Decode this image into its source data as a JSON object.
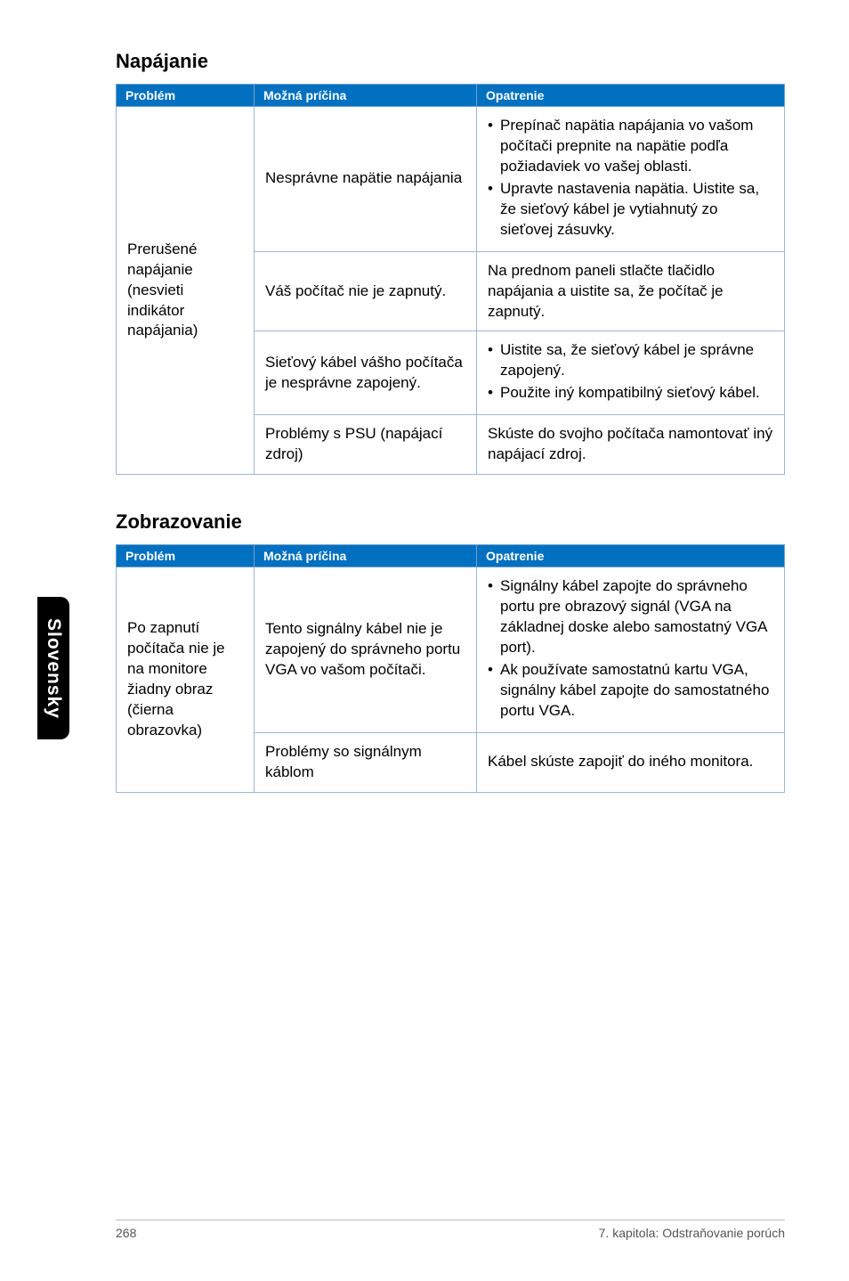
{
  "sidebar": {
    "label": "Slovensky"
  },
  "sections": {
    "power": {
      "title": "Napájanie",
      "headers": {
        "c1": "Problém",
        "c2": "Možná príčina",
        "c3": "Opatrenie"
      },
      "problem": "Prerušené napájanie (nesvieti indikátor napájania)",
      "rows": {
        "r1": {
          "cause": "Nesprávne napätie napájania",
          "fix": {
            "b1": "Prepínač napätia napájania vo vašom počítači prepnite na napätie podľa požiadaviek vo vašej oblasti.",
            "b2": "Upravte nastavenia napätia. Uistite sa, že sieťový kábel je vytiahnutý zo sieťovej zásuvky."
          }
        },
        "r2": {
          "cause": "Váš počítač nie je zapnutý.",
          "fix": "Na prednom paneli stlačte tlačidlo napájania a uistite sa, že počítač je zapnutý."
        },
        "r3": {
          "cause": "Sieťový kábel vášho počítača je nesprávne zapojený.",
          "fix": {
            "b1": "Uistite sa, že sieťový kábel je správne zapojený.",
            "b2": "Použite iný kompatibilný sieťový kábel."
          }
        },
        "r4": {
          "cause": "Problémy s PSU (napájací zdroj)",
          "fix": "Skúste do svojho počítača namontovať iný napájací zdroj."
        }
      }
    },
    "display": {
      "title": "Zobrazovanie",
      "headers": {
        "c1": "Problém",
        "c2": "Možná príčina",
        "c3": "Opatrenie"
      },
      "problem": "Po zapnutí počítača nie je na monitore žiadny obraz (čierna obrazovka)",
      "rows": {
        "r1": {
          "cause": "Tento signálny kábel nie je zapojený do správneho portu VGA vo vašom počítači.",
          "fix": {
            "b1": "Signálny kábel zapojte do správneho portu pre obrazový signál (VGA na základnej doske alebo samostatný VGA port).",
            "b2": "Ak používate samostatnú kartu VGA, signálny kábel zapojte do samostatného portu VGA."
          }
        },
        "r2": {
          "cause": "Problémy so signálnym káblom",
          "fix": "Kábel skúste zapojiť do iného monitora."
        }
      }
    }
  },
  "footer": {
    "page": "268",
    "chapter": "7. kapitola: Odstraňovanie porúch"
  }
}
